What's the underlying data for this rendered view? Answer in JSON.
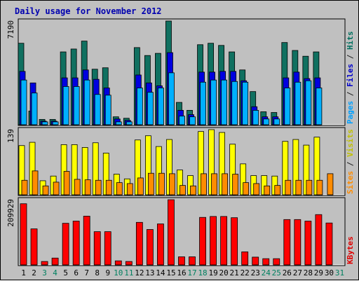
{
  "chart_data": {
    "type": "bar",
    "title": "Daily usage for November 2012",
    "categories": [
      "1",
      "2",
      "3",
      "4",
      "5",
      "6",
      "7",
      "8",
      "9",
      "10",
      "11",
      "12",
      "13",
      "14",
      "15",
      "16",
      "17",
      "18",
      "19",
      "20",
      "21",
      "22",
      "23",
      "24",
      "25",
      "26",
      "27",
      "28",
      "29",
      "30",
      "31"
    ],
    "weekend_days": [
      "3",
      "4",
      "10",
      "11",
      "17",
      "18",
      "24",
      "25",
      "31"
    ],
    "panels": [
      {
        "name": "hits_files_pages",
        "max_label": "7190",
        "ylim": [
          0,
          7190
        ],
        "side_labels": [
          {
            "text": "Pages",
            "color": "#00a0ff"
          },
          {
            "text": " / ",
            "color": "#202020"
          },
          {
            "text": "Files",
            "color": "#0000cc"
          },
          {
            "text": " / ",
            "color": "#202020"
          },
          {
            "text": "Hits",
            "color": "#007060"
          }
        ],
        "series": [
          {
            "name": "Hits",
            "color": "#107060",
            "values": [
              5650,
              950,
              370,
              370,
              5050,
              5250,
              5800,
              3850,
              3950,
              550,
              450,
              5350,
              4800,
              4950,
              7190,
              1550,
              1000,
              5550,
              5650,
              5500,
              5050,
              3800,
              2300,
              900,
              850,
              5700,
              5150,
              4750,
              5050,
              0,
              0
            ]
          },
          {
            "name": "Files",
            "color": "#0000e0",
            "values": [
              3700,
              2900,
              250,
              250,
              3250,
              3250,
              3800,
              3150,
              2550,
              400,
              300,
              3450,
              2900,
              2700,
              5000,
              1000,
              700,
              3650,
              3650,
              3700,
              3700,
              3050,
              1250,
              550,
              550,
              3250,
              3650,
              3200,
              3250,
              0,
              0
            ]
          },
          {
            "name": "Pages",
            "color": "#00b0ff",
            "values": [
              3100,
              2200,
              200,
              200,
              2650,
              2650,
              3100,
              2100,
              2050,
              200,
              200,
              2550,
              2250,
              2550,
              3600,
              600,
              550,
              2950,
              3100,
              3100,
              3000,
              2950,
              1000,
              400,
              400,
              2550,
              2950,
              3050,
              2550,
              0,
              0
            ]
          }
        ]
      },
      {
        "name": "visits_sites",
        "max_label": "139",
        "ylim": [
          0,
          139
        ],
        "side_labels": [
          {
            "text": "Sites",
            "color": "#ff8c00"
          },
          {
            "text": " / ",
            "color": "#202020"
          },
          {
            "text": "Visits",
            "color": "#c0c000"
          }
        ],
        "series": [
          {
            "name": "Visits",
            "color": "#ffff00",
            "values": [
              105,
              112,
              30,
              40,
              107,
              107,
              101,
              111,
              89,
              44,
              34,
              117,
              126,
              103,
              118,
              53,
              41,
              135,
              139,
              133,
              108,
              66,
              41,
              41,
              40,
              114,
              118,
              106,
              123,
              0,
              0
            ]
          },
          {
            "name": "Sites",
            "color": "#ff8c00",
            "values": [
              31,
              51,
              19,
              27,
              50,
              33,
              32,
              31,
              31,
              26,
              24,
              36,
              46,
              46,
              45,
              20,
              19,
              45,
              45,
              45,
              44,
              26,
              24,
              19,
              20,
              31,
              31,
              31,
              31,
              45,
              0
            ]
          }
        ]
      },
      {
        "name": "kbytes",
        "max_label": "209929",
        "ylim": [
          0,
          209929
        ],
        "side_labels": [
          {
            "text": "KBytes",
            "color": "#e00000"
          }
        ],
        "series": [
          {
            "name": "KBytes",
            "color": "#ff0000",
            "values": [
              197000,
              116000,
              11000,
              22000,
              134000,
              141000,
              157000,
              107000,
              107000,
              13000,
              11000,
              137000,
              114000,
              132000,
              209929,
              26000,
              26000,
              153000,
              156000,
              156000,
              152000,
              42000,
              25000,
              20000,
              20000,
              146000,
              146000,
              141000,
              162000,
              135000,
              0
            ]
          }
        ]
      }
    ]
  }
}
